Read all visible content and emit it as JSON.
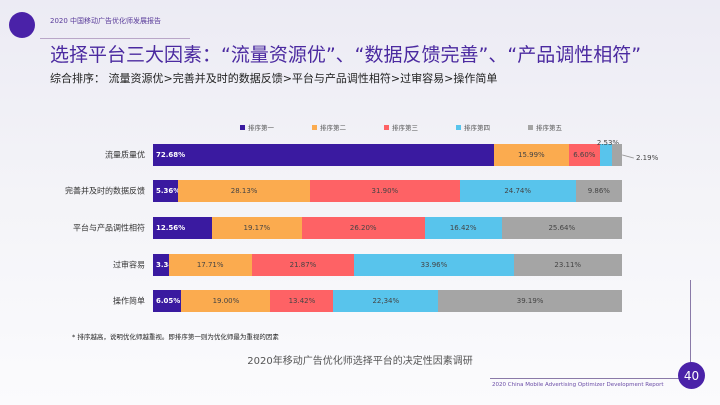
{
  "header": {
    "report_name": "2020 中国移动广告优化师发展报告",
    "title": "选择平台三大因素：“流量资源优”、“数据反馈完善”、“产品调性相符”",
    "subtitle": "综合排序：  流量资源优>完善并及时的数据反馈>平台与产品调性相符>过审容易>操作简单"
  },
  "chart_data": {
    "type": "bar",
    "orientation": "horizontal",
    "stacked": true,
    "xlim": [
      0,
      100
    ],
    "legend_position": "top",
    "categories": [
      "流量质量优",
      "完善并及时的数据反馈",
      "平台与产品调性相符",
      "过审容易",
      "操作简单"
    ],
    "series": [
      {
        "name": "排序第一",
        "color": "#3a1aa0",
        "values": [
          72.68,
          5.36,
          12.56,
          3.34,
          6.05
        ],
        "labels": [
          "72.68%",
          "5.36%",
          "12.56%",
          "3.34%",
          "6.05%"
        ]
      },
      {
        "name": "排序第二",
        "color": "#fbab4f",
        "values": [
          15.99,
          28.13,
          19.17,
          17.71,
          19.0
        ],
        "labels": [
          "15.99%",
          "28.13%",
          "19.17%",
          "17.71%",
          "19.00%"
        ]
      },
      {
        "name": "排序第三",
        "color": "#fe6265",
        "values": [
          6.6,
          31.9,
          26.2,
          21.87,
          13.42
        ],
        "labels": [
          "6.60%",
          "31.90%",
          "26.20%",
          "21.87%",
          "13.42%"
        ]
      },
      {
        "name": "排序第四",
        "color": "#58c4ec",
        "values": [
          2.53,
          24.74,
          16.42,
          33.96,
          22.34
        ],
        "labels": [
          "2.53%",
          "24.74%",
          "16.42%",
          "33.96%",
          "22,34%"
        ]
      },
      {
        "name": "排序第五",
        "color": "#a5a5a5",
        "values": [
          2.19,
          9.86,
          25.64,
          23.11,
          39.19
        ],
        "labels": [
          "2.19%",
          "9.86%",
          "25.64%",
          "23.11%",
          "39.19%"
        ]
      }
    ]
  },
  "footer": {
    "note": "* 排序越高，说明优化师越重视。即排序第一则为优化师最为重视的因素",
    "caption": "2020年移动广告优化师选择平台的决定性因素调研",
    "english": "2020 China Mobile Advertising Optimizer Development Report",
    "page": "40"
  }
}
